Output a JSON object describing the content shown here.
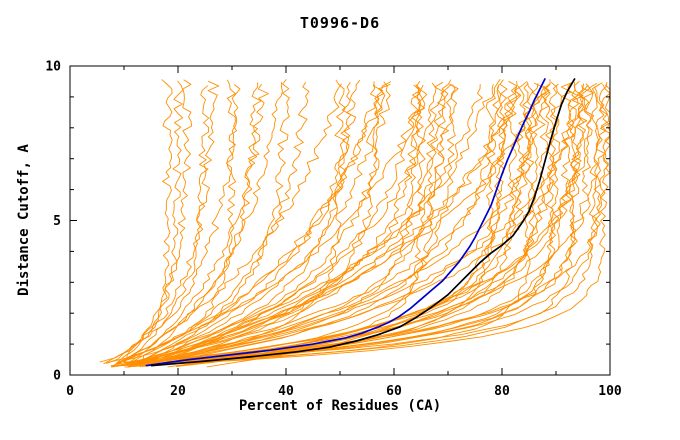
{
  "chart_data": {
    "type": "line",
    "title": "T0996-D6",
    "xlabel": "Percent of Residues (CA)",
    "ylabel": "Distance Cutoff, A",
    "xlim": [
      0,
      100
    ],
    "ylim": [
      0,
      10
    ],
    "x_major_ticks": [
      0,
      20,
      40,
      60,
      80,
      100
    ],
    "x_minor_step": 10,
    "y_major_ticks": [
      0,
      5,
      10
    ],
    "y_minor_step": 1,
    "grid": false,
    "legend": "none",
    "colors": {
      "ensemble": "#ff8f00",
      "blue_curve": "#0000cd",
      "black_curve": "#000000",
      "axis": "#000000",
      "background": "#ffffff"
    },
    "curve_y_range": [
      0.25,
      9.6
    ],
    "curve_model": "x(y) = xmax - (xmax - x0) * exp(-(y - y0)/tau)",
    "ensemble_curves_params": [
      [
        6,
        18,
        0.8
      ],
      [
        7,
        20,
        1.2
      ],
      [
        8,
        22,
        2.0
      ],
      [
        6,
        25,
        1.5
      ],
      [
        9,
        27,
        2.5
      ],
      [
        7,
        30,
        1.0
      ],
      [
        10,
        32,
        3.0
      ],
      [
        8,
        35,
        2.2
      ],
      [
        11,
        38,
        3.5
      ],
      [
        9,
        40,
        1.8
      ],
      [
        12,
        42,
        4.0
      ],
      [
        10,
        45,
        2.8
      ],
      [
        8,
        50,
        1.0
      ],
      [
        10,
        52,
        2.0
      ],
      [
        12,
        55,
        3.0
      ],
      [
        9,
        57,
        1.5
      ],
      [
        11,
        60,
        2.5
      ],
      [
        13,
        62,
        3.5
      ],
      [
        10,
        64,
        1.2
      ],
      [
        12,
        66,
        2.2
      ],
      [
        14,
        68,
        3.2
      ],
      [
        11,
        70,
        1.8
      ],
      [
        13,
        72,
        2.8
      ],
      [
        15,
        74,
        3.8
      ],
      [
        9,
        75,
        4.5
      ],
      [
        10,
        58,
        5.0
      ],
      [
        12,
        63,
        4.2
      ],
      [
        8,
        67,
        0.9
      ],
      [
        14,
        71,
        1.4
      ],
      [
        16,
        73,
        2.6
      ],
      [
        13,
        69,
        5.5
      ],
      [
        11,
        65,
        0.7
      ],
      [
        10,
        78,
        0.8
      ],
      [
        12,
        80,
        1.1
      ],
      [
        14,
        82,
        0.9
      ],
      [
        11,
        84,
        1.3
      ],
      [
        13,
        86,
        1.0
      ],
      [
        15,
        88,
        1.2
      ],
      [
        12,
        90,
        0.85
      ],
      [
        14,
        92,
        1.05
      ],
      [
        16,
        94,
        0.95
      ],
      [
        13,
        96,
        1.15
      ],
      [
        15,
        98,
        1.0
      ],
      [
        17,
        100,
        1.25
      ],
      [
        10,
        80,
        2.0
      ],
      [
        12,
        84,
        2.5
      ],
      [
        14,
        88,
        2.2
      ],
      [
        11,
        92,
        2.8
      ],
      [
        13,
        96,
        2.4
      ],
      [
        15,
        100,
        3.0
      ],
      [
        9,
        82,
        3.5
      ],
      [
        11,
        86,
        4.0
      ],
      [
        13,
        90,
        3.8
      ],
      [
        15,
        94,
        4.5
      ],
      [
        12,
        98,
        4.2
      ],
      [
        8,
        85,
        0.6
      ],
      [
        10,
        89,
        0.7
      ],
      [
        12,
        93,
        0.65
      ],
      [
        14,
        97,
        0.75
      ],
      [
        16,
        99,
        0.7
      ],
      [
        18,
        95,
        1.6
      ],
      [
        20,
        90,
        1.5
      ],
      [
        22,
        85,
        1.4
      ],
      [
        25,
        80,
        1.3
      ],
      [
        18,
        100,
        1.8
      ],
      [
        20,
        98,
        2.1
      ],
      [
        24,
        96,
        1.9
      ]
    ],
    "series": [
      {
        "name": "blue-model",
        "color": "#0000cd",
        "points": [
          [
            14,
            0.3
          ],
          [
            18,
            0.4
          ],
          [
            22,
            0.5
          ],
          [
            27,
            0.6
          ],
          [
            32,
            0.7
          ],
          [
            37,
            0.8
          ],
          [
            41,
            0.9
          ],
          [
            45,
            1.0
          ],
          [
            48,
            1.1
          ],
          [
            51,
            1.2
          ],
          [
            54,
            1.35
          ],
          [
            57,
            1.55
          ],
          [
            59,
            1.7
          ],
          [
            61,
            1.9
          ],
          [
            63,
            2.15
          ],
          [
            65,
            2.45
          ],
          [
            67,
            2.75
          ],
          [
            69,
            3.05
          ],
          [
            70,
            3.25
          ],
          [
            71,
            3.45
          ],
          [
            72,
            3.65
          ],
          [
            73,
            3.9
          ],
          [
            74,
            4.15
          ],
          [
            75,
            4.45
          ],
          [
            76,
            4.8
          ],
          [
            77,
            5.15
          ],
          [
            78,
            5.5
          ],
          [
            79,
            6.0
          ],
          [
            80,
            6.5
          ],
          [
            81,
            6.95
          ],
          [
            82,
            7.35
          ],
          [
            83,
            7.75
          ],
          [
            84,
            8.15
          ],
          [
            85,
            8.5
          ],
          [
            86,
            8.9
          ],
          [
            87,
            9.25
          ],
          [
            88,
            9.6
          ]
        ]
      },
      {
        "name": "black-model",
        "color": "#000000",
        "points": [
          [
            15,
            0.3
          ],
          [
            25,
            0.45
          ],
          [
            34,
            0.6
          ],
          [
            42,
            0.75
          ],
          [
            48,
            0.9
          ],
          [
            53,
            1.1
          ],
          [
            57,
            1.3
          ],
          [
            61,
            1.55
          ],
          [
            64,
            1.85
          ],
          [
            67,
            2.2
          ],
          [
            70,
            2.6
          ],
          [
            72,
            2.95
          ],
          [
            74,
            3.3
          ],
          [
            76,
            3.65
          ],
          [
            78,
            3.95
          ],
          [
            80,
            4.2
          ],
          [
            82,
            4.5
          ],
          [
            83,
            4.75
          ],
          [
            84,
            5.0
          ],
          [
            85,
            5.3
          ],
          [
            86,
            5.75
          ],
          [
            87,
            6.3
          ],
          [
            88,
            6.95
          ],
          [
            89,
            7.6
          ],
          [
            90,
            8.2
          ],
          [
            91,
            8.75
          ],
          [
            92,
            9.15
          ],
          [
            93,
            9.45
          ],
          [
            93.5,
            9.6
          ]
        ]
      }
    ]
  }
}
